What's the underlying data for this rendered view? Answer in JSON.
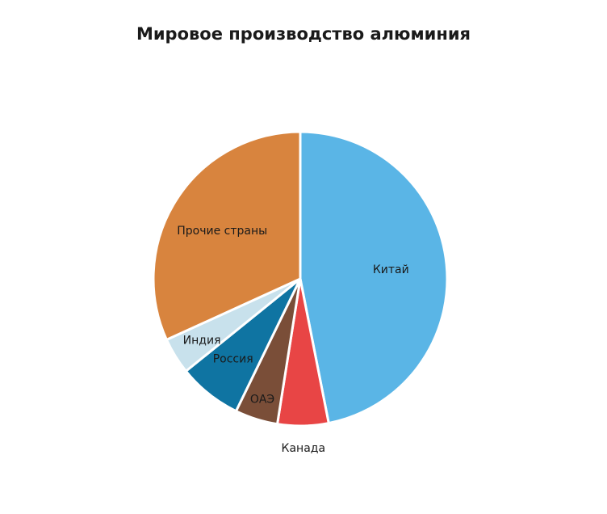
{
  "chart_data": {
    "type": "pie",
    "title": "Мировое производство алюминия",
    "start_angle_deg": 0,
    "direction": "clockwise",
    "slices": [
      {
        "label": "Китай",
        "value": 46.9,
        "color": "#5ab5e6"
      },
      {
        "label": "Канада",
        "value": 5.6,
        "color": "#e84545"
      },
      {
        "label": "ОАЭ",
        "value": 4.7,
        "color": "#7a4e38"
      },
      {
        "label": "Россия",
        "value": 7.0,
        "color": "#0f74a2"
      },
      {
        "label": "Индия",
        "value": 4.0,
        "color": "#c8e1ec"
      },
      {
        "label": "Прочие страны",
        "value": 31.8,
        "color": "#d8843e"
      }
    ]
  }
}
